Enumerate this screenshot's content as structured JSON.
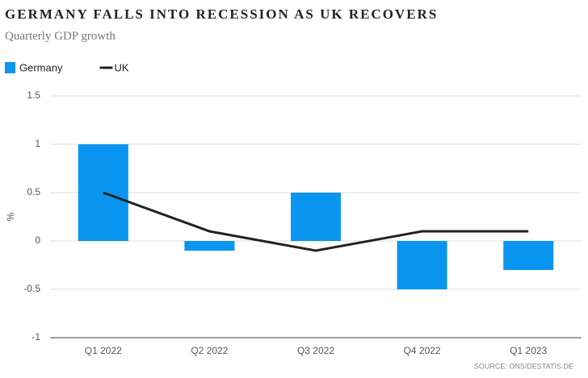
{
  "chart_data": {
    "type": "bar",
    "title": "GERMANY FALLS INTO RECESSION AS UK RECOVERS",
    "subtitle": "Quarterly GDP growth",
    "y_label": "%",
    "source": "SOURCE: ONS/DESTATIS.DE",
    "categories": [
      "Q1 2022",
      "Q2 2022",
      "Q3 2022",
      "Q4 2022",
      "Q1 2023"
    ],
    "series": [
      {
        "name": "Germany",
        "type": "bar",
        "color": "#0a96f0",
        "values": [
          1,
          -0.1,
          0.5,
          -0.5,
          -0.3
        ]
      },
      {
        "name": "UK",
        "type": "line",
        "color": "#222222",
        "values": [
          0.5,
          0.1,
          -0.1,
          0.1,
          0.1
        ]
      }
    ],
    "ylim": [
      -1,
      1.5
    ],
    "yticks": [
      -1,
      -0.5,
      0,
      0.5,
      1,
      1.5
    ],
    "grid": true
  }
}
